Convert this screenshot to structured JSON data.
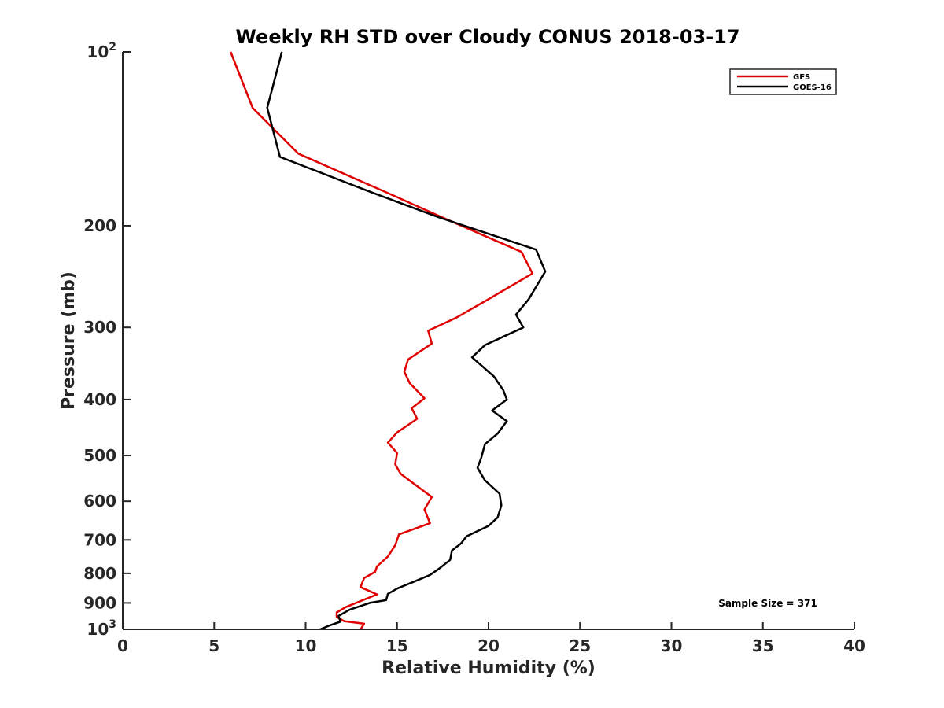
{
  "chart_data": {
    "type": "line",
    "title": "Weekly RH STD over Cloudy CONUS 2018-03-17",
    "xlabel": "Relative Humidity (%)",
    "ylabel": "Pressure (mb)",
    "xlim": [
      0,
      40
    ],
    "ylim": [
      100,
      1000
    ],
    "yscale": "log",
    "y_reversed": true,
    "x_ticks": [
      "0",
      "5",
      "10",
      "15",
      "20",
      "25",
      "30",
      "35",
      "40"
    ],
    "y_ticks": [
      {
        "value": 100,
        "label": "10",
        "sup": "2"
      },
      {
        "value": 200,
        "label": "200"
      },
      {
        "value": 300,
        "label": "300"
      },
      {
        "value": 400,
        "label": "400"
      },
      {
        "value": 500,
        "label": "500"
      },
      {
        "value": 600,
        "label": "600"
      },
      {
        "value": 700,
        "label": "700"
      },
      {
        "value": 800,
        "label": "800"
      },
      {
        "value": 900,
        "label": "900"
      },
      {
        "value": 1000,
        "label": "10",
        "sup": "3"
      }
    ],
    "legend_position": "top-right",
    "annotation": "Sample Size = 371",
    "series": [
      {
        "name": "GFS",
        "color": "#e00000",
        "points": [
          [
            5.9,
            100
          ],
          [
            7.1,
            125
          ],
          [
            9.6,
            150
          ],
          [
            14.4,
            175
          ],
          [
            17.4,
            193
          ],
          [
            21.8,
            222
          ],
          [
            22.4,
            242
          ],
          [
            20.0,
            268
          ],
          [
            18.2,
            289
          ],
          [
            16.7,
            304
          ],
          [
            16.9,
            320
          ],
          [
            15.6,
            341
          ],
          [
            15.4,
            358
          ],
          [
            15.7,
            375
          ],
          [
            16.5,
            398
          ],
          [
            15.8,
            414
          ],
          [
            16.1,
            432
          ],
          [
            15.0,
            456
          ],
          [
            14.5,
            475
          ],
          [
            15.0,
            495
          ],
          [
            14.9,
            518
          ],
          [
            15.2,
            538
          ],
          [
            16.1,
            565
          ],
          [
            16.9,
            590
          ],
          [
            16.5,
            620
          ],
          [
            16.8,
            655
          ],
          [
            15.1,
            685
          ],
          [
            14.9,
            715
          ],
          [
            14.5,
            748
          ],
          [
            13.9,
            778
          ],
          [
            13.8,
            795
          ],
          [
            13.2,
            815
          ],
          [
            13.0,
            845
          ],
          [
            13.9,
            870
          ],
          [
            12.2,
            915
          ],
          [
            11.7,
            935
          ],
          [
            11.7,
            952
          ],
          [
            12.1,
            968
          ],
          [
            13.2,
            978
          ],
          [
            13.0,
            1000
          ]
        ]
      },
      {
        "name": "GOES-16",
        "color": "#000000",
        "points": [
          [
            8.7,
            100
          ],
          [
            7.9,
            125
          ],
          [
            8.6,
            152
          ],
          [
            13.6,
            175
          ],
          [
            17.2,
            193
          ],
          [
            22.6,
            220
          ],
          [
            23.1,
            240
          ],
          [
            22.2,
            268
          ],
          [
            21.5,
            285
          ],
          [
            21.9,
            300
          ],
          [
            19.8,
            322
          ],
          [
            19.1,
            338
          ],
          [
            20.3,
            365
          ],
          [
            20.8,
            385
          ],
          [
            21.0,
            400
          ],
          [
            20.2,
            418
          ],
          [
            21.0,
            436
          ],
          [
            20.5,
            458
          ],
          [
            19.8,
            478
          ],
          [
            19.6,
            505
          ],
          [
            19.4,
            525
          ],
          [
            19.8,
            552
          ],
          [
            20.6,
            582
          ],
          [
            20.7,
            610
          ],
          [
            20.5,
            640
          ],
          [
            20.0,
            662
          ],
          [
            18.8,
            690
          ],
          [
            18.5,
            710
          ],
          [
            18.0,
            730
          ],
          [
            17.9,
            758
          ],
          [
            17.3,
            785
          ],
          [
            16.8,
            805
          ],
          [
            16.0,
            825
          ],
          [
            15.0,
            850
          ],
          [
            14.5,
            868
          ],
          [
            14.4,
            890
          ],
          [
            13.5,
            900
          ],
          [
            12.4,
            925
          ],
          [
            11.8,
            948
          ],
          [
            11.9,
            970
          ],
          [
            11.3,
            985
          ],
          [
            10.8,
            1000
          ]
        ]
      }
    ]
  }
}
